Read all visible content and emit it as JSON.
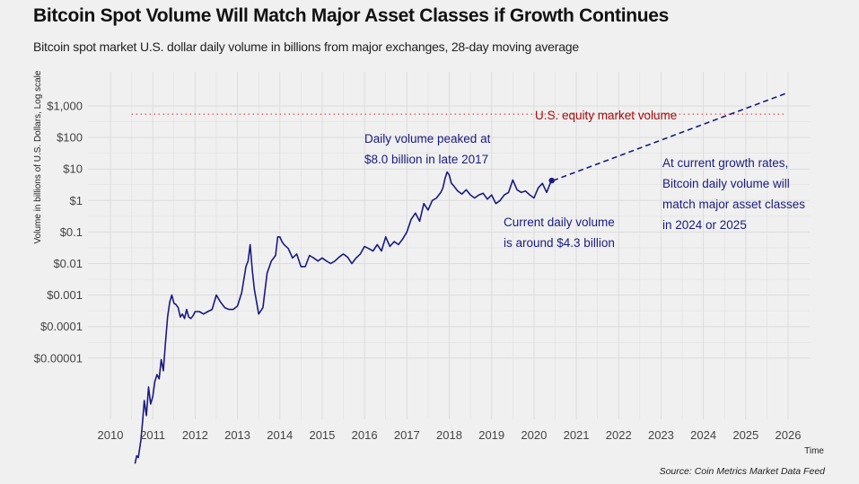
{
  "title": "Bitcoin Spot Volume Will Match Major Asset Classes if Growth Continues",
  "subtitle": "Bitcoin spot market U.S. dollar daily volume in billions from major exchanges, 28-day moving average",
  "source": "Source: Coin Metrics Market Data Feed",
  "colors": {
    "series": "#1a1a80",
    "equity_line": "#e04a4a",
    "equity_text": "#a01010",
    "annotation": "#1a1a80",
    "grid": "#dcdcdc",
    "background": "#f0f0f0"
  },
  "chart_data": {
    "type": "line",
    "title": "Bitcoin Spot Volume Will Match Major Asset Classes if Growth Continues",
    "xlabel": "Time",
    "ylabel": "Volume in billions of U.S. Dollars, Log scale",
    "y_scale": "log",
    "xlim": [
      2010,
      2026
    ],
    "ylim": [
      3e-09,
      3000
    ],
    "grid": true,
    "x_ticks": [
      "2010",
      "2011",
      "2012",
      "2013",
      "2014",
      "2015",
      "2016",
      "2017",
      "2018",
      "2019",
      "2020",
      "2021",
      "2022",
      "2023",
      "2024",
      "2025",
      "2026"
    ],
    "y_ticks": [
      {
        "value": 1000,
        "label": "$1,000"
      },
      {
        "value": 100,
        "label": "$100"
      },
      {
        "value": 10,
        "label": "$10"
      },
      {
        "value": 1,
        "label": "$1"
      },
      {
        "value": 0.1,
        "label": "$0.1"
      },
      {
        "value": 0.01,
        "label": "$0.01"
      },
      {
        "value": 0.001,
        "label": "$0.001"
      },
      {
        "value": 0.0001,
        "label": "$0.0001"
      },
      {
        "value": 1e-05,
        "label": "$0.00001"
      }
    ],
    "series": [
      {
        "style": "solid",
        "x": [
          2010.58,
          2010.62,
          2010.66,
          2010.72,
          2010.76,
          2010.8,
          2010.85,
          2010.9,
          2010.95,
          2011.0,
          2011.05,
          2011.1,
          2011.15,
          2011.2,
          2011.25,
          2011.3,
          2011.35,
          2011.4,
          2011.45,
          2011.5,
          2011.55,
          2011.6,
          2011.65,
          2011.7,
          2011.75,
          2011.8,
          2011.85,
          2011.9,
          2011.95,
          2012.0,
          2012.1,
          2012.2,
          2012.3,
          2012.4,
          2012.5,
          2012.6,
          2012.7,
          2012.8,
          2012.9,
          2013.0,
          2013.1,
          2013.2,
          2013.25,
          2013.3,
          2013.35,
          2013.4,
          2013.5,
          2013.6,
          2013.7,
          2013.8,
          2013.9,
          2013.95,
          2014.0,
          2014.05,
          2014.1,
          2014.2,
          2014.3,
          2014.4,
          2014.5,
          2014.6,
          2014.7,
          2014.8,
          2014.9,
          2015.0,
          2015.1,
          2015.2,
          2015.3,
          2015.4,
          2015.5,
          2015.6,
          2015.7,
          2015.8,
          2015.9,
          2016.0,
          2016.1,
          2016.2,
          2016.3,
          2016.4,
          2016.5,
          2016.6,
          2016.7,
          2016.8,
          2016.9,
          2017.0,
          2017.1,
          2017.2,
          2017.3,
          2017.4,
          2017.5,
          2017.6,
          2017.7,
          2017.8,
          2017.85,
          2017.9,
          2017.95,
          2018.0,
          2018.05,
          2018.1,
          2018.2,
          2018.3,
          2018.4,
          2018.5,
          2018.6,
          2018.7,
          2018.8,
          2018.9,
          2019.0,
          2019.1,
          2019.2,
          2019.3,
          2019.4,
          2019.5,
          2019.6,
          2019.7,
          2019.8,
          2019.9,
          2020.0,
          2020.1,
          2020.2,
          2020.3,
          2020.4,
          2020.45
        ],
        "values": [
          4.5e-09,
          8e-09,
          7e-09,
          2.5e-08,
          1e-07,
          4.5e-07,
          1.5e-07,
          1.2e-06,
          3.5e-07,
          6e-07,
          1.8e-06,
          3e-06,
          2.2e-06,
          9e-06,
          4e-06,
          3e-05,
          0.0002,
          0.0006,
          0.001,
          0.00055,
          0.0005,
          0.0004,
          0.0002,
          0.00025,
          0.00018,
          0.00035,
          0.0002,
          0.00018,
          0.00022,
          0.0003,
          0.0003,
          0.00025,
          0.0003,
          0.00035,
          0.001,
          0.0006,
          0.0004,
          0.00035,
          0.00035,
          0.00045,
          0.0012,
          0.008,
          0.012,
          0.04,
          0.006,
          0.0015,
          0.00025,
          0.0004,
          0.005,
          0.012,
          0.018,
          0.07,
          0.07,
          0.05,
          0.04,
          0.03,
          0.015,
          0.02,
          0.008,
          0.008,
          0.018,
          0.015,
          0.012,
          0.015,
          0.012,
          0.01,
          0.012,
          0.016,
          0.02,
          0.016,
          0.01,
          0.015,
          0.02,
          0.035,
          0.03,
          0.025,
          0.04,
          0.025,
          0.07,
          0.035,
          0.05,
          0.04,
          0.06,
          0.1,
          0.25,
          0.4,
          0.22,
          0.8,
          0.5,
          1.0,
          1.2,
          1.8,
          2.5,
          5.0,
          8.0,
          6.5,
          3.5,
          3.0,
          2.0,
          1.6,
          2.2,
          1.5,
          1.2,
          1.5,
          1.7,
          1.1,
          1.5,
          0.8,
          1.0,
          1.5,
          1.8,
          4.5,
          2.2,
          1.8,
          2.0,
          1.5,
          1.2,
          2.5,
          3.5,
          1.8,
          4.0,
          4.3
        ]
      },
      {
        "style": "dashed",
        "x": [
          2020.45,
          2025.95
        ],
        "values": [
          4.3,
          2500
        ]
      }
    ],
    "reference_line": {
      "value": 550,
      "x": [
        2010.5,
        2025.95
      ],
      "label": "U.S. equity market volume"
    },
    "annotations": [
      {
        "lines": [
          "Daily volume peaked at",
          "$8.0 billion in late 2017"
        ]
      },
      {
        "lines": [
          "Current daily volume",
          "is around $4.3 billion"
        ]
      },
      {
        "lines": [
          "At current growth rates,",
          "Bitcoin daily volume will",
          "match major asset classes",
          "in 2024 or 2025"
        ]
      }
    ],
    "last_point": {
      "x": 2020.42,
      "value": 4.3
    }
  }
}
